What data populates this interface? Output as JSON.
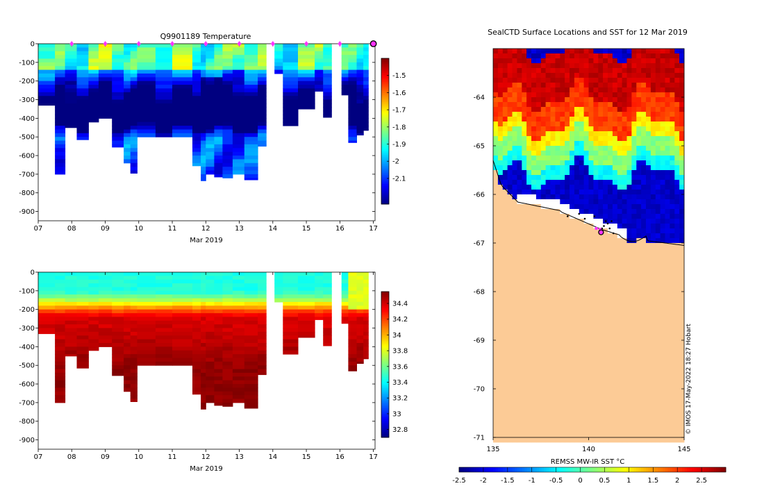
{
  "chart_data": [
    {
      "type": "heatmap",
      "name": "temperature-section",
      "title": "Q9901189  Temperature",
      "xlabel": "Mar 2019",
      "ylabel": "",
      "x_ticks": [
        "07",
        "08",
        "09",
        "10",
        "11",
        "12",
        "13",
        "14",
        "15",
        "16",
        "17"
      ],
      "x_range_days": [
        7,
        17.05
      ],
      "y_ticks": [
        0,
        -100,
        -200,
        -300,
        -400,
        -500,
        -600,
        -700,
        -800,
        -900
      ],
      "ylim": [
        -950,
        0
      ],
      "colorbar": {
        "min": -2.25,
        "max": -1.4,
        "ticks": [
          -1.5,
          -1.6,
          -1.7,
          -1.8,
          -1.9,
          -2,
          -2.1
        ]
      },
      "surface_markers_day": [
        8,
        9,
        10,
        11,
        12,
        13,
        14,
        15,
        16
      ],
      "last_position_marker_day": 17,
      "profiles": [
        {
          "t": 7.0,
          "depth": 330
        },
        {
          "t": 7.5,
          "depth": 700
        },
        {
          "t": 7.8,
          "depth": 450
        },
        {
          "t": 8.15,
          "depth": 515
        },
        {
          "t": 8.5,
          "depth": 420
        },
        {
          "t": 8.8,
          "depth": 400
        },
        {
          "t": 9.2,
          "depth": 555
        },
        {
          "t": 9.55,
          "depth": 640
        },
        {
          "t": 9.75,
          "depth": 695
        },
        {
          "t": 9.95,
          "depth": 500
        },
        {
          "t": 10.5,
          "depth": 500
        },
        {
          "t": 11.0,
          "depth": 500
        },
        {
          "t": 11.6,
          "depth": 655
        },
        {
          "t": 11.85,
          "depth": 735
        },
        {
          "t": 12.0,
          "depth": 700
        },
        {
          "t": 12.25,
          "depth": 715
        },
        {
          "t": 12.5,
          "depth": 720
        },
        {
          "t": 12.8,
          "depth": 700
        },
        {
          "t": 13.15,
          "depth": 730
        },
        {
          "t": 13.55,
          "depth": 550
        },
        {
          "t": 13.8,
          "depth": 0
        },
        {
          "t": 14.05,
          "depth": 160
        },
        {
          "t": 14.3,
          "depth": 440
        },
        {
          "t": 14.75,
          "depth": 350
        },
        {
          "t": 15.25,
          "depth": 255
        },
        {
          "t": 15.5,
          "depth": 395
        },
        {
          "t": 15.75,
          "depth": 0
        },
        {
          "t": 16.05,
          "depth": 275
        },
        {
          "t": 16.25,
          "depth": 530
        },
        {
          "t": 16.5,
          "depth": 490
        },
        {
          "t": 16.7,
          "depth": 465
        }
      ]
    },
    {
      "type": "heatmap",
      "name": "salinity-section",
      "title": "",
      "xlabel": "Mar 2019",
      "ylabel": "",
      "x_ticks": [
        "07",
        "08",
        "09",
        "10",
        "11",
        "12",
        "13",
        "14",
        "15",
        "16",
        "17"
      ],
      "x_range_days": [
        7,
        17.05
      ],
      "y_ticks": [
        0,
        -100,
        -200,
        -300,
        -400,
        -500,
        -600,
        -700,
        -800,
        -900
      ],
      "ylim": [
        -950,
        0
      ],
      "colorbar": {
        "min": 32.7,
        "max": 34.55,
        "ticks": [
          34.4,
          34.2,
          34,
          33.8,
          33.6,
          33.4,
          33.2,
          33,
          32.8
        ]
      }
    },
    {
      "type": "heatmap",
      "name": "sst-map",
      "title": "SealCTD Surface Locations and SST for 12 Mar 2019",
      "xlabel": "",
      "ylabel": "",
      "xlim": [
        135,
        145
      ],
      "ylim": [
        -71,
        -63
      ],
      "x_ticks": [
        135,
        140,
        145
      ],
      "y_ticks": [
        -64,
        -65,
        -66,
        -67,
        -68,
        -69,
        -70,
        -71
      ],
      "colorbar": {
        "label": "REMSS MW-IR SST °C",
        "min": -2.5,
        "max": 3,
        "ticks": [
          -2.5,
          -2,
          -1.5,
          -1,
          -0.5,
          0,
          0.5,
          1,
          1.5,
          2,
          2.5
        ]
      },
      "sst_bands": [
        {
          "from_lat": -63.0,
          "to_lat": -64.0,
          "sst": 2.6
        },
        {
          "from_lat": -64.0,
          "to_lat": -64.6,
          "sst": 2.0
        },
        {
          "from_lat": -64.6,
          "to_lat": -64.9,
          "sst": 1.0
        },
        {
          "from_lat": -64.9,
          "to_lat": -65.3,
          "sst": 0.3
        },
        {
          "from_lat": -65.3,
          "to_lat": -65.6,
          "sst": -0.4
        },
        {
          "from_lat": -65.6,
          "to_lat": -67.0,
          "sst": -2.1
        }
      ],
      "seal_positions": [
        {
          "lon": 140.8,
          "lat": -66.65
        },
        {
          "lon": 140.9,
          "lat": -66.55
        },
        {
          "lon": 141.0,
          "lat": -66.6
        },
        {
          "lon": 141.1,
          "lat": -66.7
        },
        {
          "lon": 140.6,
          "lat": -66.75
        },
        {
          "lon": 141.2,
          "lat": -66.55
        },
        {
          "lon": 139.8,
          "lat": -66.5
        },
        {
          "lon": 139.5,
          "lat": -66.4
        },
        {
          "lon": 140.3,
          "lat": -66.45
        },
        {
          "lon": 141.3,
          "lat": -66.8
        },
        {
          "lon": 140.7,
          "lat": -66.7
        },
        {
          "lon": 138.9,
          "lat": -66.45
        }
      ],
      "seal_positions_today": [
        {
          "lon": 140.4,
          "lat": -66.7
        },
        {
          "lon": 140.6,
          "lat": -66.72
        }
      ],
      "current_position": {
        "lon": 140.65,
        "lat": -66.78
      }
    }
  ],
  "credit": "© IMOS 17-May-2022 18:27 Hobart"
}
